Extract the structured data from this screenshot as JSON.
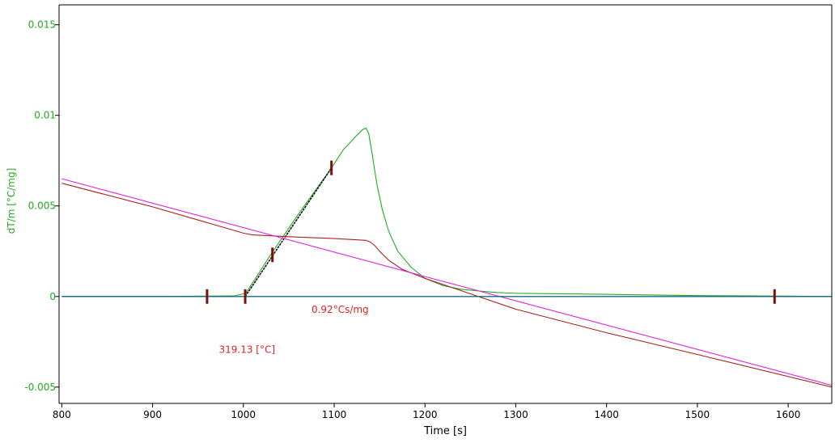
{
  "chart_data": {
    "type": "line",
    "xlabel": "Time [s]",
    "ylabel": "dT/m  [°C/mg]",
    "xlim": [
      797,
      1648
    ],
    "ylim": [
      -0.0059,
      0.0161
    ],
    "x_ticks": [
      800,
      900,
      1000,
      1100,
      1200,
      1300,
      1400,
      1500,
      1600
    ],
    "y_ticks": [
      0.015,
      0.01,
      0.005,
      0,
      -0.005
    ],
    "y_tick_labels": [
      "0.015",
      "0.01",
      "0.005",
      "0",
      "-0.005"
    ],
    "grid": false,
    "annotations": [
      {
        "text": "0.92°Cs/mg",
        "x": 1075,
        "y": -0.0009,
        "color": "#dd2222"
      },
      {
        "text": "319.13 [°C]",
        "x": 973,
        "y": -0.0031,
        "color": "#dd2222"
      }
    ],
    "markers": [
      {
        "x": 960,
        "y": 0.0
      },
      {
        "x": 1002,
        "y": 0.0
      },
      {
        "x": 1032,
        "y": 0.0023
      },
      {
        "x": 1097,
        "y": 0.0071
      },
      {
        "x": 1585,
        "y": 0.0
      }
    ],
    "series": [
      {
        "color": "#22aa22",
        "x": [
          800,
          900,
          990,
          1000,
          1003,
          1030,
          1060,
          1097,
          1110,
          1125,
          1131,
          1135,
          1138,
          1142,
          1147,
          1153,
          1160,
          1170,
          1185,
          1200,
          1220,
          1240,
          1260,
          1280,
          1300,
          1400,
          1500,
          1600,
          1648
        ],
        "y": [
          0.0,
          0.0,
          3e-05,
          0.00015,
          0.0002,
          0.0023,
          0.0045,
          0.0071,
          0.0081,
          0.0089,
          0.0092,
          0.0093,
          0.009,
          0.0078,
          0.0062,
          0.0048,
          0.0036,
          0.0025,
          0.0016,
          0.001,
          0.0006,
          0.0004,
          0.0003,
          0.00022,
          0.00018,
          0.00012,
          5e-05,
          2e-05,
          0.0
        ]
      },
      {
        "color": "#111111",
        "x": [
          1002,
          1097
        ],
        "y": [
          0.0,
          0.0071
        ]
      },
      {
        "color": "#aa2222",
        "x": [
          800,
          900,
          1000,
          1010,
          1050,
          1100,
          1135,
          1140,
          1145,
          1150,
          1160,
          1175,
          1200,
          1300,
          1400,
          1500,
          1648
        ],
        "y": [
          0.00625,
          0.00495,
          0.0035,
          0.0034,
          0.0033,
          0.0032,
          0.0031,
          0.003,
          0.0028,
          0.0025,
          0.002,
          0.0015,
          0.001,
          -0.0007,
          -0.002,
          -0.0032,
          -0.005
        ]
      },
      {
        "color": "#dd22dd",
        "x": [
          800,
          1200,
          1648
        ],
        "y": [
          0.0065,
          0.0011,
          -0.0049
        ]
      },
      {
        "color": "#3322aa",
        "x": [
          800,
          1648
        ],
        "y": [
          0.0,
          0.0
        ]
      },
      {
        "color": "#117777",
        "x": [
          800,
          1648
        ],
        "y": [
          0.0,
          0.0
        ]
      }
    ]
  }
}
